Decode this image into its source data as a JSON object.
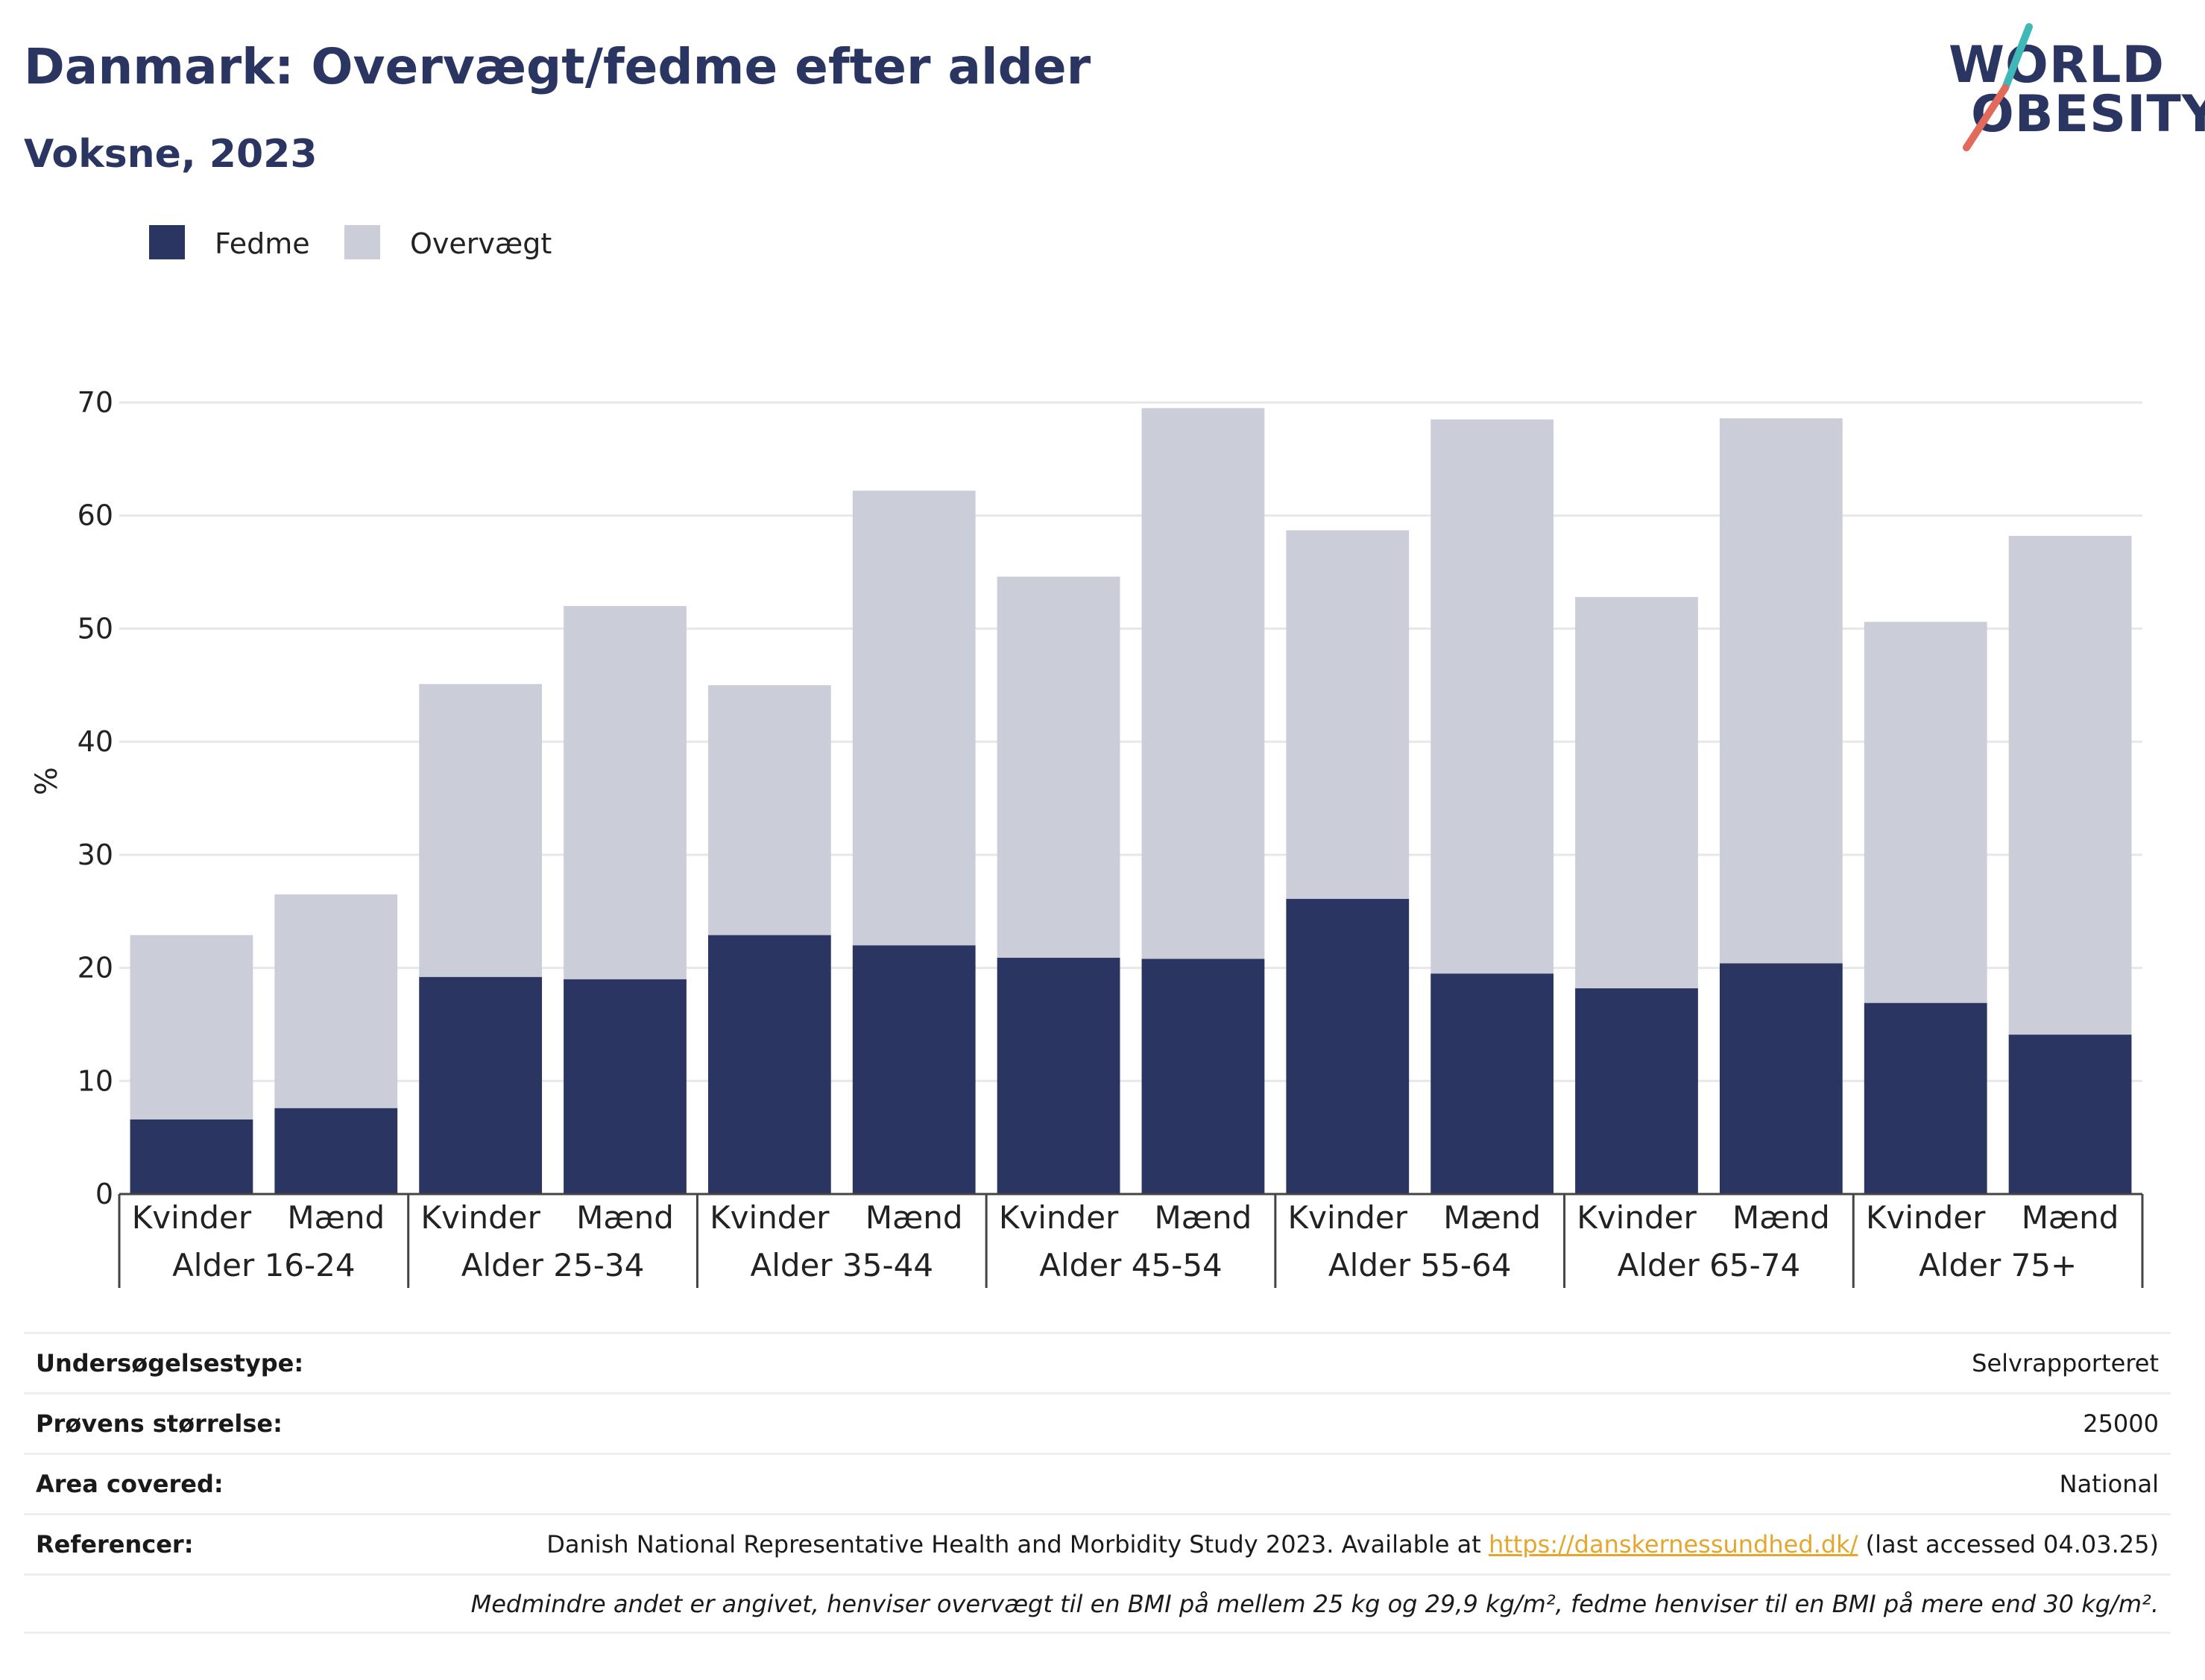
{
  "header": {
    "title": "Danmark: Overvægt/fedme efter alder",
    "subtitle": "Voksne, 2023"
  },
  "logo": {
    "line1": "WORLD",
    "line2": "OBESITY",
    "accent_teal": "#3fb8b8",
    "accent_red": "#e26a5a"
  },
  "colors": {
    "fedme": "#2b3562",
    "overvaegt": "#cbcdd8",
    "grid": "#e6e7ea",
    "title": "#2b3562",
    "link": "#e4a62c"
  },
  "chart_data": {
    "type": "bar",
    "stacked": true,
    "ylabel": "%",
    "ylim": [
      0,
      70
    ],
    "yticks": [
      0,
      10,
      20,
      30,
      40,
      50,
      60,
      70
    ],
    "grid": true,
    "legend_position": "top-left",
    "groups": [
      "Alder 16-24",
      "Alder 25-34",
      "Alder 35-44",
      "Alder 45-54",
      "Alder 55-64",
      "Alder 65-74",
      "Alder 75+"
    ],
    "subcategories": [
      "Kvinder",
      "Mænd"
    ],
    "series": [
      {
        "name": "Fedme",
        "values": [
          6.6,
          7.6,
          19.2,
          19.0,
          22.9,
          22.0,
          20.9,
          20.8,
          26.1,
          19.5,
          18.2,
          20.4,
          16.9,
          14.1
        ]
      },
      {
        "name": "Overvægt",
        "values": [
          16.3,
          18.9,
          25.9,
          33.0,
          22.1,
          40.2,
          33.7,
          48.7,
          32.6,
          49.0,
          34.6,
          48.2,
          33.7,
          44.1
        ]
      }
    ],
    "totals": [
      22.9,
      26.5,
      45.1,
      52.0,
      45.0,
      62.2,
      54.6,
      69.5,
      58.7,
      68.5,
      52.8,
      68.6,
      50.6,
      58.2
    ]
  },
  "info": {
    "rows": [
      {
        "label": "Undersøgelsestype:",
        "value": "Selvrapporteret"
      },
      {
        "label": "Prøvens størrelse:",
        "value": "25000"
      },
      {
        "label": "Area covered:",
        "value": "National"
      }
    ],
    "reference": {
      "label": "Referencer:",
      "text_before": "Danish National Representative Health and Morbidity Study 2023. Available at ",
      "link": "https://danskernessundhed.dk/",
      "text_after": " (last accessed 04.03.25)"
    },
    "note": "Medmindre andet er angivet, henviser overvægt til en BMI på mellem 25 kg og 29,9 kg/m², fedme henviser til en BMI på mere end 30 kg/m²."
  }
}
